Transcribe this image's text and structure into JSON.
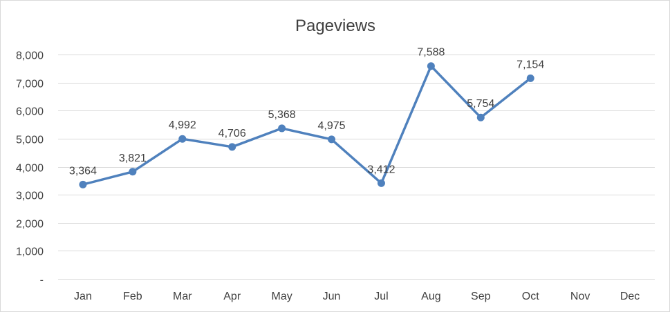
{
  "chart_data": {
    "type": "line",
    "title": "Pageviews",
    "categories": [
      "Jan",
      "Feb",
      "Mar",
      "Apr",
      "May",
      "Jun",
      "Jul",
      "Aug",
      "Sep",
      "Oct",
      "Nov",
      "Dec"
    ],
    "series": [
      {
        "values": [
          3364,
          3821,
          4992,
          4706,
          5368,
          4975,
          3412,
          7588,
          5754,
          7154,
          null,
          null
        ],
        "data_labels": [
          "3,364",
          "3,821",
          "4,992",
          "4,706",
          "5,368",
          "4,975",
          "3,412",
          "7,588",
          "5,754",
          "7,154",
          null,
          null
        ],
        "color": "#4F81BD"
      }
    ],
    "ylim": [
      0,
      8000
    ],
    "y_ticks": [
      0,
      1000,
      2000,
      3000,
      4000,
      5000,
      6000,
      7000,
      8000
    ],
    "y_tick_labels": [
      "-",
      "1,000",
      "2,000",
      "3,000",
      "4,000",
      "5,000",
      "6,000",
      "7,000",
      "8,000"
    ],
    "grid": true,
    "legend": "none",
    "xlabel": "",
    "ylabel": ""
  }
}
